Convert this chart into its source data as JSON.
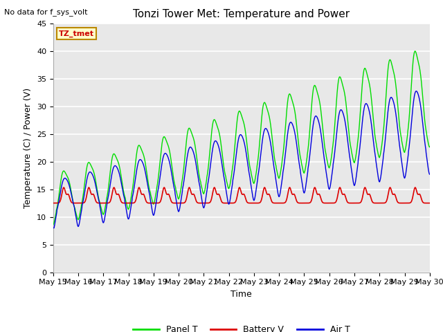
{
  "title": "Tonzi Tower Met: Temperature and Power",
  "top_left_text": "No data for f_sys_volt",
  "xlabel": "Time",
  "ylabel": "Temperature (C) / Power (V)",
  "ylim": [
    0,
    45
  ],
  "yticks": [
    0,
    5,
    10,
    15,
    20,
    25,
    30,
    35,
    40,
    45
  ],
  "x_tick_labels": [
    "May 15",
    "May 16",
    "May 17",
    "May 18",
    "May 19",
    "May 20",
    "May 21",
    "May 22",
    "May 23",
    "May 24",
    "May 25",
    "May 26",
    "May 27",
    "May 28",
    "May 29",
    "May 30"
  ],
  "legend_labels": [
    "Panel T",
    "Battery V",
    "Air T"
  ],
  "legend_colors": [
    "#00dd00",
    "#dd0000",
    "#0000dd"
  ],
  "panel_color": "#00dd00",
  "battery_color": "#dd0000",
  "air_color": "#0000dd",
  "annotation_text": "TZ_tmet",
  "annotation_bg": "#ffffcc",
  "annotation_border": "#bb8800",
  "plot_bg": "#e8e8e8",
  "title_fontsize": 11,
  "axis_fontsize": 9,
  "tick_fontsize": 8,
  "legend_fontsize": 9
}
